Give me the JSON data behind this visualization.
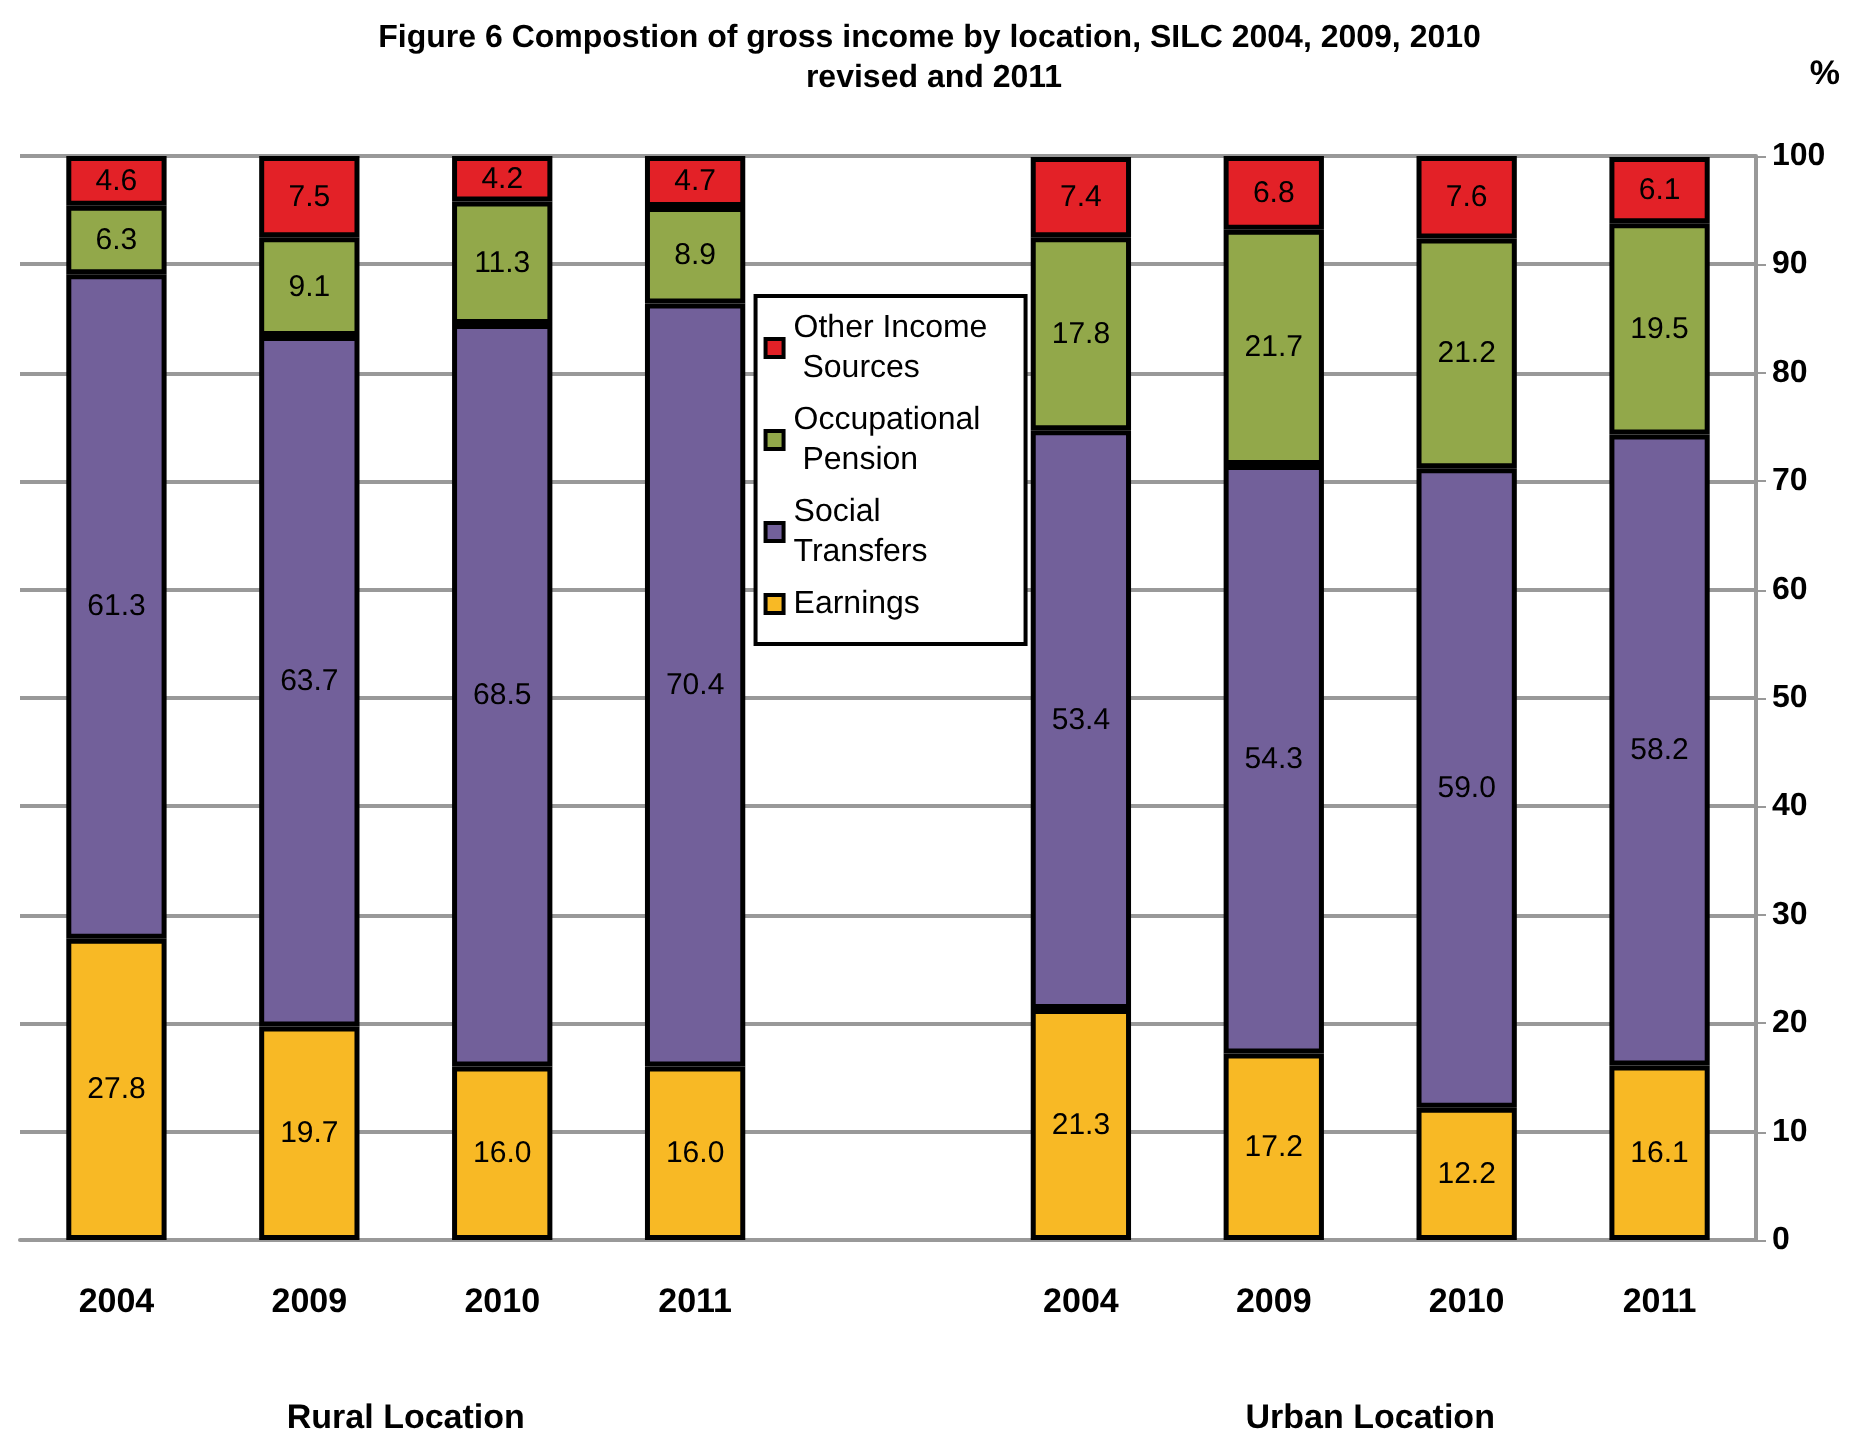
{
  "chart_data": {
    "type": "bar",
    "stacked": true,
    "title": "Figure 6 Compostion of gross income by location, SILC 2004, 2009, 2010 revised and 2011",
    "ylabel": "%",
    "categories": [
      "2004",
      "2009",
      "2010",
      "2011",
      null,
      "2004",
      "2009",
      "2010",
      "2011"
    ],
    "series": [
      {
        "name": "Earnings",
        "color": "#f8b925",
        "values": [
          27.8,
          19.7,
          16.0,
          16.0,
          null,
          21.3,
          17.2,
          12.2,
          16.1
        ],
        "value_labels": [
          "27.8",
          "19.7",
          "16.0",
          "16.0",
          null,
          "21.3",
          "17.2",
          "12.2",
          "16.1"
        ]
      },
      {
        "name": "Social Transfers",
        "color": "#72609a",
        "values": [
          61.3,
          63.7,
          68.5,
          70.4,
          null,
          53.4,
          54.3,
          59.0,
          58.2
        ],
        "value_labels": [
          "61.3",
          "63.7",
          "68.5",
          "70.4",
          null,
          "53.4",
          "54.3",
          "59.0",
          "58.2"
        ]
      },
      {
        "name": "Occupational Pension",
        "color": "#92a84a",
        "values": [
          6.3,
          9.1,
          11.3,
          8.9,
          null,
          17.8,
          21.7,
          21.2,
          19.5
        ],
        "value_labels": [
          "6.3",
          "9.1",
          "11.3",
          "8.9",
          null,
          "17.8",
          "21.7",
          "21.2",
          "19.5"
        ]
      },
      {
        "name": "Other Income Sources",
        "color": "#e32127",
        "values": [
          4.6,
          7.5,
          4.2,
          4.7,
          null,
          7.4,
          6.8,
          7.6,
          6.1
        ],
        "value_labels": [
          "4.6",
          "7.5",
          "4.2",
          "4.7",
          null,
          "7.4",
          "6.8",
          "7.6",
          "6.1"
        ]
      }
    ],
    "ylim": [
      0,
      100
    ],
    "yticks": [
      0,
      10,
      20,
      30,
      40,
      50,
      60,
      70,
      80,
      90,
      100
    ],
    "grid": "y",
    "legend": "top",
    "annotations": [
      "Rural Location",
      "Urban Location"
    ]
  }
}
